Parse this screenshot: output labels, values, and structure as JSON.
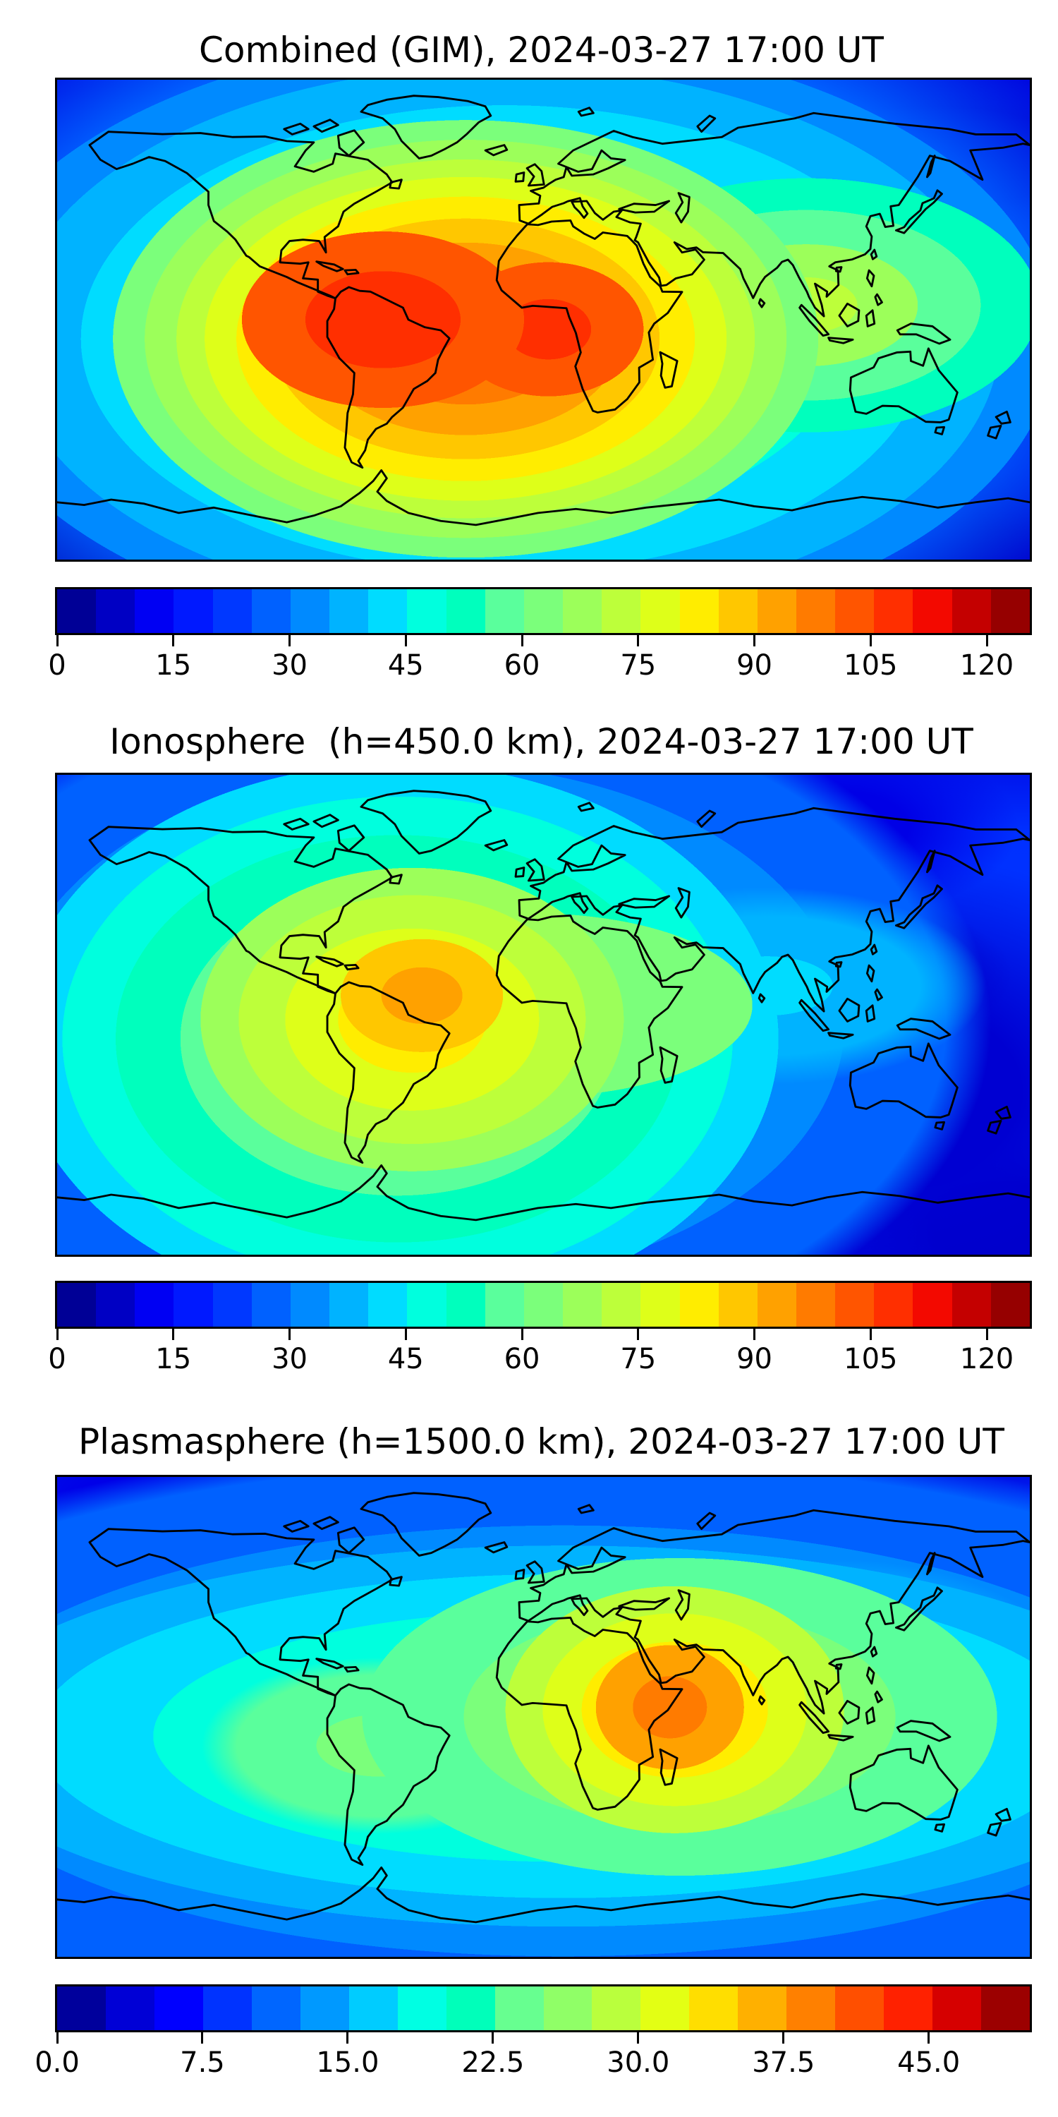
{
  "figure": {
    "background": "#ffffff",
    "colormap": "jet",
    "panels": [
      {
        "id": "combined-gim",
        "title": "Combined (GIM), 2024-03-27 17:00 UT",
        "colorbar": {
          "min": 0,
          "max": 125,
          "n_segments": 25,
          "ticks": [
            {
              "value": 0,
              "label": "0"
            },
            {
              "value": 15,
              "label": "15"
            },
            {
              "value": 30,
              "label": "30"
            },
            {
              "value": 45,
              "label": "45"
            },
            {
              "value": 60,
              "label": "60"
            },
            {
              "value": 75,
              "label": "75"
            },
            {
              "value": 90,
              "label": "90"
            },
            {
              "value": 105,
              "label": "105"
            },
            {
              "value": 120,
              "label": "120"
            }
          ],
          "palette": [
            "#000096",
            "#0000C4",
            "#0000F3",
            "#0019FF",
            "#0038FF",
            "#0061FF",
            "#008AFF",
            "#00B3FF",
            "#00DCFF",
            "#00FFDE",
            "#00FFBD",
            "#5AFF9C",
            "#7BFF7B",
            "#9CFF5A",
            "#BDFF3A",
            "#DEFF19",
            "#FFED00",
            "#FFC700",
            "#FFA100",
            "#FF7B00",
            "#FF5500",
            "#FF2F00",
            "#F30900",
            "#C40000",
            "#960000"
          ]
        }
      },
      {
        "id": "ionosphere",
        "title": "Ionosphere  (h=450.0 km), 2024-03-27 17:00 UT",
        "colorbar": {
          "min": 0,
          "max": 125,
          "n_segments": 25,
          "ticks": [
            {
              "value": 0,
              "label": "0"
            },
            {
              "value": 15,
              "label": "15"
            },
            {
              "value": 30,
              "label": "30"
            },
            {
              "value": 45,
              "label": "45"
            },
            {
              "value": 60,
              "label": "60"
            },
            {
              "value": 75,
              "label": "75"
            },
            {
              "value": 90,
              "label": "90"
            },
            {
              "value": 105,
              "label": "105"
            },
            {
              "value": 120,
              "label": "120"
            }
          ],
          "palette": [
            "#000096",
            "#0000C4",
            "#0000F3",
            "#0019FF",
            "#0038FF",
            "#0061FF",
            "#008AFF",
            "#00B3FF",
            "#00DCFF",
            "#00FFDE",
            "#00FFBD",
            "#5AFF9C",
            "#7BFF7B",
            "#9CFF5A",
            "#BDFF3A",
            "#DEFF19",
            "#FFED00",
            "#FFC700",
            "#FFA100",
            "#FF7B00",
            "#FF5500",
            "#FF2F00",
            "#F30900",
            "#C40000",
            "#960000"
          ]
        }
      },
      {
        "id": "plasmasphere",
        "title": "Plasmasphere (h=1500.0 km), 2024-03-27 17:00 UT",
        "colorbar": {
          "min": 0,
          "max": 50,
          "n_segments": 20,
          "ticks": [
            {
              "value": 0,
              "label": "0.0"
            },
            {
              "value": 7.5,
              "label": "7.5"
            },
            {
              "value": 15,
              "label": "15.0"
            },
            {
              "value": 22.5,
              "label": "22.5"
            },
            {
              "value": 30,
              "label": "30.0"
            },
            {
              "value": 37.5,
              "label": "37.5"
            },
            {
              "value": 45,
              "label": "45.0"
            }
          ],
          "palette": [
            "#00009C",
            "#0000D6",
            "#0000FF",
            "#0033FF",
            "#0066FF",
            "#0099FF",
            "#00CCFF",
            "#00FFE3",
            "#00FFBA",
            "#67FF90",
            "#90FF67",
            "#BAFF3D",
            "#E3FF14",
            "#FFDE00",
            "#FFB000",
            "#FF8000",
            "#FF4F00",
            "#FF2100",
            "#D60000",
            "#9C0000"
          ]
        }
      }
    ]
  },
  "chart_data": [
    {
      "type": "heatmap",
      "subtype": "filled_contour_world_map",
      "title": "Combined (GIM), 2024-03-27 17:00 UT",
      "colormap": "jet",
      "projection": "equirectangular",
      "lon_range": [
        -180,
        180
      ],
      "lat_range": [
        -90,
        90
      ],
      "value_range": [
        0,
        125
      ],
      "contour_interval": 5,
      "colorbar_ticks": [
        0,
        15,
        30,
        45,
        60,
        75,
        90,
        105,
        120
      ],
      "coastlines": true,
      "features": [
        {
          "name": "primary maximum",
          "lon": -58,
          "lat": -8,
          "value": 110
        },
        {
          "name": "secondary maximum",
          "lon": 0,
          "lat": -4,
          "value": 105
        },
        {
          "name": "equatorial enhancement band",
          "description": "warm band (60-95) stretching from South America across the Atlantic and Africa, tapering toward India and Southeast Asia",
          "value_range": [
            60,
            95
          ]
        },
        {
          "name": "background lows",
          "description": "low values (5-30) at high latitudes, over the north-west Pacific and near the poles",
          "value_range": [
            5,
            30
          ]
        }
      ]
    },
    {
      "type": "heatmap",
      "subtype": "filled_contour_world_map",
      "title": "Ionosphere  (h=450.0 km), 2024-03-27 17:00 UT",
      "colormap": "jet",
      "projection": "equirectangular",
      "lon_range": [
        -180,
        180
      ],
      "lat_range": [
        -90,
        90
      ],
      "value_range": [
        0,
        125
      ],
      "contour_interval": 5,
      "colorbar_ticks": [
        0,
        15,
        30,
        45,
        60,
        75,
        90,
        105,
        120
      ],
      "coastlines": true,
      "features": [
        {
          "name": "primary maximum",
          "lon": -48,
          "lat": 4,
          "value": 90
        },
        {
          "name": "enhancement region",
          "description": "yellow-green region (45-80) over northern South America extending south over the continent and east over the tropical Atlantic",
          "value_range": [
            45,
            80
          ]
        },
        {
          "name": "secondary enhancement",
          "description": "moderate values (30-45) over India and Southeast Asia",
          "value_range": [
            30,
            45
          ]
        },
        {
          "name": "background lows",
          "description": "low values (5-25) over the Indian Ocean, Australia and high latitudes",
          "value_range": [
            5,
            25
          ]
        }
      ]
    },
    {
      "type": "heatmap",
      "subtype": "filled_contour_world_map",
      "title": "Plasmasphere (h=1500.0 km), 2024-03-27 17:00 UT",
      "colormap": "jet",
      "projection": "equirectangular",
      "lon_range": [
        -180,
        180
      ],
      "lat_range": [
        -90,
        90
      ],
      "value_range": [
        0,
        50
      ],
      "contour_interval": 2.5,
      "colorbar_ticks": [
        0,
        7.5,
        15,
        22.5,
        30,
        37.5,
        45
      ],
      "coastlines": true,
      "features": [
        {
          "name": "primary maximum",
          "lon": 44,
          "lat": 3,
          "value": 39
        },
        {
          "name": "equatorial band",
          "description": "green-cyan band (12-28) along low latitudes from South America to Southeast Asia",
          "value_range": [
            12,
            28
          ]
        },
        {
          "name": "background lows",
          "description": "dark-blue minima (2-8) over northern Canada, the south-east Pacific and southern Indian Ocean",
          "value_range": [
            2,
            8
          ]
        }
      ]
    }
  ]
}
